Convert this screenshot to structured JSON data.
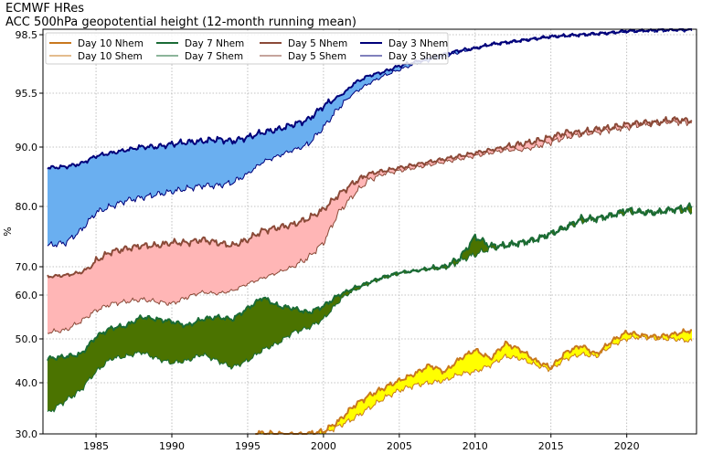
{
  "chart_data": {
    "type": "line",
    "title": "ECMWF HRes",
    "subtitle": "ACC 500hPa geopotential height (12-month running mean)",
    "xlabel": "",
    "ylabel": "%",
    "xlim": [
      1981.5,
      2024.6
    ],
    "y_scale": "transformed (1 - ACC, logarithmic-style spacing)",
    "y_ticks": [
      30.0,
      40.0,
      50.0,
      60.0,
      70.0,
      80.0,
      90.0,
      95.5,
      98.5
    ],
    "y_tick_labels": [
      "30.0",
      "40.0",
      "50.0",
      "60.0",
      "70.0",
      "80.0",
      "90.0",
      "95.5",
      "98.5"
    ],
    "x_ticks": [
      1985,
      1990,
      1995,
      2000,
      2005,
      2010,
      2015,
      2020
    ],
    "x_tick_labels": [
      "1985",
      "1990",
      "1995",
      "2000",
      "2005",
      "2010",
      "2015",
      "2020"
    ],
    "grid": true,
    "legend_placement": "top-left",
    "fill_between_hemispheres": true,
    "series": [
      {
        "name": "Day 10 Nhem",
        "color": "#c8781e",
        "width": 2.0,
        "fill": "#ffff00",
        "x": [
          1995.5,
          1997,
          1998.5,
          2000,
          2001,
          2002,
          2003,
          2004,
          2005,
          2006,
          2007,
          2008,
          2009,
          2010,
          2011,
          2012,
          2013,
          2014,
          2015,
          2016,
          2017,
          2018,
          2019,
          2020,
          2021,
          2022,
          2023,
          2024.3
        ],
        "y": [
          30.2,
          30.0,
          29.8,
          30.5,
          32.5,
          35.5,
          37.5,
          39.0,
          40.5,
          42.0,
          44.0,
          42.5,
          45.5,
          47.5,
          45.5,
          49.0,
          47.5,
          45.0,
          43.5,
          47.0,
          48.5,
          46.5,
          49.5,
          51.5,
          50.8,
          50.5,
          51.0,
          52.0
        ]
      },
      {
        "name": "Day 10 Shem",
        "color": "#c8781e",
        "width": 1.0,
        "x": [
          1995.5,
          1997,
          1998.5,
          2000,
          2001,
          2002,
          2003,
          2004,
          2005,
          2006,
          2007,
          2008,
          2009,
          2010,
          2011,
          2012,
          2013,
          2014,
          2015,
          2016,
          2017,
          2018,
          2019,
          2020,
          2021,
          2022,
          2023,
          2024.3
        ],
        "y": [
          29.5,
          29.0,
          29.2,
          30.0,
          31.5,
          33.0,
          35.0,
          37.0,
          38.5,
          39.5,
          40.0,
          40.5,
          42.0,
          42.5,
          44.0,
          46.0,
          45.5,
          44.0,
          43.0,
          45.5,
          46.5,
          46.0,
          48.5,
          50.0,
          50.5,
          50.0,
          50.0,
          49.5
        ]
      },
      {
        "name": "Day 7 Nhem",
        "color": "#1a6b35",
        "width": 2.0,
        "fill": "#4b7300",
        "x": [
          1981.8,
          1983,
          1984,
          1985,
          1986,
          1987,
          1988,
          1989,
          1990,
          1991,
          1992,
          1993,
          1994,
          1995,
          1996,
          1997,
          1998,
          1999,
          2000,
          2001,
          2002,
          2003,
          2004,
          2005,
          2006,
          2007,
          2008,
          2009,
          2010,
          2011,
          2012,
          2013,
          2014,
          2015,
          2016,
          2017,
          2018,
          2019,
          2020,
          2021,
          2022,
          2023,
          2024.3
        ],
        "y": [
          45.5,
          46.0,
          46.5,
          50.5,
          52.5,
          53.0,
          55.0,
          54.5,
          54.0,
          53.0,
          54.5,
          55.0,
          54.5,
          57.0,
          59.5,
          57.5,
          57.0,
          56.0,
          57.5,
          60.0,
          62.5,
          64.5,
          66.5,
          68.0,
          68.5,
          69.5,
          70.0,
          71.5,
          75.0,
          73.5,
          73.5,
          74.0,
          74.5,
          75.5,
          76.5,
          78.0,
          78.0,
          78.5,
          79.5,
          79.0,
          79.0,
          79.5,
          80.0
        ]
      },
      {
        "name": "Day 7 Shem",
        "color": "#1a6b35",
        "width": 1.0,
        "x": [
          1981.8,
          1983,
          1984,
          1985,
          1986,
          1987,
          1988,
          1989,
          1990,
          1991,
          1992,
          1993,
          1994,
          1995,
          1996,
          1997,
          1998,
          1999,
          2000,
          2001,
          2002,
          2003,
          2004,
          2005,
          2006,
          2007,
          2008,
          2009,
          2010,
          2011,
          2012,
          2013,
          2014,
          2015,
          2016,
          2017,
          2018,
          2019,
          2020,
          2021,
          2022,
          2023,
          2024.3
        ],
        "y": [
          34.0,
          36.5,
          38.5,
          42.5,
          45.5,
          46.0,
          47.0,
          45.5,
          44.5,
          45.0,
          46.5,
          45.0,
          43.5,
          45.0,
          47.5,
          49.0,
          51.5,
          52.5,
          54.5,
          58.5,
          61.5,
          64.0,
          66.0,
          67.5,
          68.5,
          69.0,
          69.5,
          71.0,
          72.0,
          73.0,
          73.5,
          74.0,
          74.5,
          75.5,
          76.5,
          77.5,
          78.0,
          78.5,
          79.0,
          79.0,
          79.0,
          79.5,
          79.0
        ]
      },
      {
        "name": "Day 5 Nhem",
        "color": "#8b4a38",
        "width": 2.0,
        "fill": "#ffb6b6",
        "x": [
          1981.8,
          1983,
          1984,
          1985,
          1986,
          1987,
          1988,
          1989,
          1990,
          1991,
          1992,
          1993,
          1994,
          1995,
          1996,
          1997,
          1998,
          1999,
          2000,
          2001,
          2002,
          2003,
          2004,
          2005,
          2006,
          2007,
          2008,
          2009,
          2010,
          2011,
          2012,
          2013,
          2014,
          2015,
          2016,
          2017,
          2018,
          2019,
          2020,
          2021,
          2022,
          2023,
          2024.3
        ],
        "y": [
          66.5,
          67.0,
          68.0,
          71.0,
          72.5,
          73.0,
          73.5,
          73.5,
          74.0,
          74.0,
          74.5,
          74.0,
          73.5,
          74.5,
          76.0,
          76.5,
          77.0,
          78.0,
          79.5,
          82.0,
          84.0,
          85.5,
          86.0,
          86.5,
          87.0,
          87.5,
          88.0,
          88.5,
          89.0,
          89.5,
          90.0,
          90.3,
          90.6,
          91.0,
          91.5,
          91.5,
          91.8,
          92.0,
          92.3,
          92.5,
          92.5,
          92.8,
          92.7
        ]
      },
      {
        "name": "Day 5 Shem",
        "color": "#8b4a38",
        "width": 1.0,
        "x": [
          1981.8,
          1983,
          1984,
          1985,
          1986,
          1987,
          1988,
          1989,
          1990,
          1991,
          1992,
          1993,
          1994,
          1995,
          1996,
          1997,
          1998,
          1999,
          2000,
          2001,
          2002,
          2003,
          2004,
          2005,
          2006,
          2007,
          2008,
          2009,
          2010,
          2011,
          2012,
          2013,
          2014,
          2015,
          2016,
          2017,
          2018,
          2019,
          2020,
          2021,
          2022,
          2023,
          2024.3
        ],
        "y": [
          51.5,
          52.0,
          54.0,
          56.5,
          58.0,
          58.5,
          59.0,
          58.5,
          58.0,
          59.5,
          61.0,
          60.5,
          61.5,
          64.0,
          66.0,
          68.0,
          70.0,
          71.5,
          74.0,
          79.0,
          82.0,
          84.5,
          85.5,
          86.0,
          86.5,
          87.0,
          87.5,
          88.0,
          88.5,
          89.0,
          89.5,
          89.5,
          90.0,
          90.5,
          91.0,
          91.3,
          91.5,
          91.8,
          92.0,
          92.3,
          92.5,
          92.6,
          92.5
        ]
      },
      {
        "name": "Day 3 Nhem",
        "color": "#00007a",
        "width": 2.0,
        "fill": "#6aaff0",
        "x": [
          1981.8,
          1983,
          1984,
          1985,
          1986,
          1987,
          1988,
          1989,
          1990,
          1991,
          1992,
          1993,
          1994,
          1995,
          1996,
          1997,
          1998,
          1999,
          2000,
          2001,
          2002,
          2003,
          2004,
          2005,
          2006,
          2007,
          2008,
          2009,
          2010,
          2011,
          2012,
          2013,
          2014,
          2015,
          2016,
          2017,
          2018,
          2019,
          2020,
          2021,
          2022,
          2023,
          2024.3
        ],
        "y": [
          86.5,
          86.7,
          87.2,
          88.5,
          89.0,
          89.5,
          90.0,
          90.0,
          90.3,
          90.5,
          90.6,
          90.8,
          90.6,
          91.0,
          91.5,
          91.8,
          92.3,
          92.8,
          94.2,
          95.2,
          96.0,
          96.4,
          96.6,
          96.9,
          97.1,
          97.3,
          97.5,
          97.7,
          97.8,
          98.0,
          98.1,
          98.2,
          98.3,
          98.4,
          98.45,
          98.5,
          98.55,
          98.6,
          98.7,
          98.7,
          98.75,
          98.75,
          98.8
        ]
      },
      {
        "name": "Day 3 Shem",
        "color": "#00007a",
        "width": 1.0,
        "x": [
          1981.8,
          1983,
          1984,
          1985,
          1986,
          1987,
          1988,
          1989,
          1990,
          1991,
          1992,
          1993,
          1994,
          1995,
          1996,
          1997,
          1998,
          1999,
          2000,
          2001,
          2002,
          2003,
          2004,
          2005,
          2006,
          2007,
          2008,
          2009,
          2010,
          2011,
          2012,
          2013,
          2014,
          2015,
          2016,
          2017,
          2018,
          2019,
          2020,
          2021,
          2022,
          2023,
          2024.3
        ],
        "y": [
          73.5,
          74.0,
          76.0,
          79.0,
          80.0,
          81.0,
          81.5,
          82.0,
          82.5,
          83.0,
          83.5,
          83.5,
          84.0,
          85.5,
          87.5,
          88.5,
          89.5,
          90.3,
          92.0,
          94.0,
          95.5,
          96.0,
          96.4,
          96.7,
          97.0,
          97.2,
          97.4,
          97.6,
          97.8,
          98.0,
          98.1,
          98.2,
          98.3,
          98.4,
          98.45,
          98.5,
          98.55,
          98.6,
          98.65,
          98.7,
          98.7,
          98.75,
          98.7
        ]
      }
    ]
  }
}
